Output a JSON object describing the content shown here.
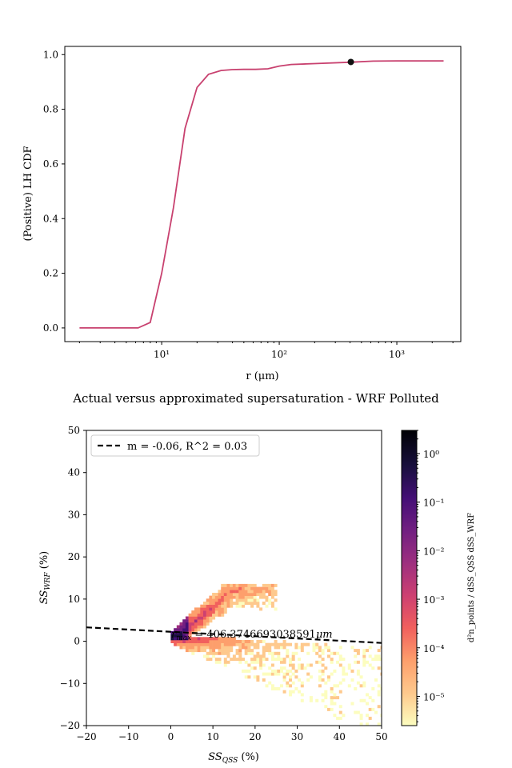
{
  "chart_data": [
    {
      "type": "line",
      "xscale": "log",
      "xlim": [
        1.5,
        3500
      ],
      "ylim": [
        -0.05,
        1.03
      ],
      "xlabel": "r (μm)",
      "ylabel": "(Positive) LH CDF",
      "xtick_labels": [
        "10¹",
        "10²",
        "10³"
      ],
      "xtick_values": [
        10,
        100,
        1000
      ],
      "yticks": [
        0.0,
        0.2,
        0.4,
        0.6,
        0.8,
        1.0
      ],
      "ytick_labels": [
        "0.0",
        "0.2",
        "0.4",
        "0.6",
        "0.8",
        "1.0"
      ],
      "line_color": "#c8416f",
      "series": [
        {
          "x": [
            2,
            2.5,
            3.2,
            4,
            5,
            6.3,
            8,
            10,
            12.6,
            15.8,
            20,
            25,
            32,
            40,
            50,
            63,
            80,
            100,
            126,
            200,
            400,
            630,
            1000,
            2500
          ],
          "y": [
            0,
            0,
            0,
            0,
            0,
            0,
            0.02,
            0.2,
            0.44,
            0.73,
            0.88,
            0.928,
            0.942,
            0.945,
            0.946,
            0.946,
            0.948,
            0.958,
            0.964,
            0.967,
            0.972,
            0.976,
            0.977,
            0.977
          ]
        }
      ],
      "marker": {
        "x": 406.37,
        "y": 0.973,
        "color": "#111111"
      }
    },
    {
      "type": "heatmap",
      "title": "Actual versus approximated supersaturation - WRF Polluted",
      "xlim": [
        -20,
        50
      ],
      "ylim": [
        -20,
        50
      ],
      "xticks": [
        -20,
        -10,
        0,
        10,
        20,
        30,
        40,
        50
      ],
      "yticks": [
        -20,
        -10,
        0,
        10,
        20,
        30,
        40,
        50
      ],
      "xlabel_main": "SS",
      "xlabel_sub": "QSS",
      "xlabel_unit": " (%)",
      "ylabel_main": "SS",
      "ylabel_sub": "WRF",
      "ylabel_unit": " (%)",
      "legend_label": "m = -0.06, R^2 = 0.03",
      "fit": {
        "m": -0.06,
        "b": 1.2
      },
      "annotation_main": "r",
      "annotation_sub": "max",
      "annotation_rest": " = 406.3746693038591",
      "annotation_unit": "μm",
      "colorbar": {
        "scale": "log",
        "min": 2.5e-06,
        "max": 3,
        "ticks": [
          1e-05,
          0.0001,
          0.001,
          0.01,
          0.1,
          1
        ],
        "tick_labels": [
          "10⁻⁵",
          "10⁻⁴",
          "10⁻³",
          "10⁻²",
          "10⁻¹",
          "10⁰"
        ],
        "label": "d²n_points / dSS_QSS dSS_WRF",
        "colors": [
          "#fcfdbf",
          "#fec98d",
          "#fd9f6c",
          "#f1605d",
          "#cd4071",
          "#9e2f7f",
          "#721f81",
          "#440f76",
          "#180f3d",
          "#000004"
        ]
      }
    }
  ]
}
